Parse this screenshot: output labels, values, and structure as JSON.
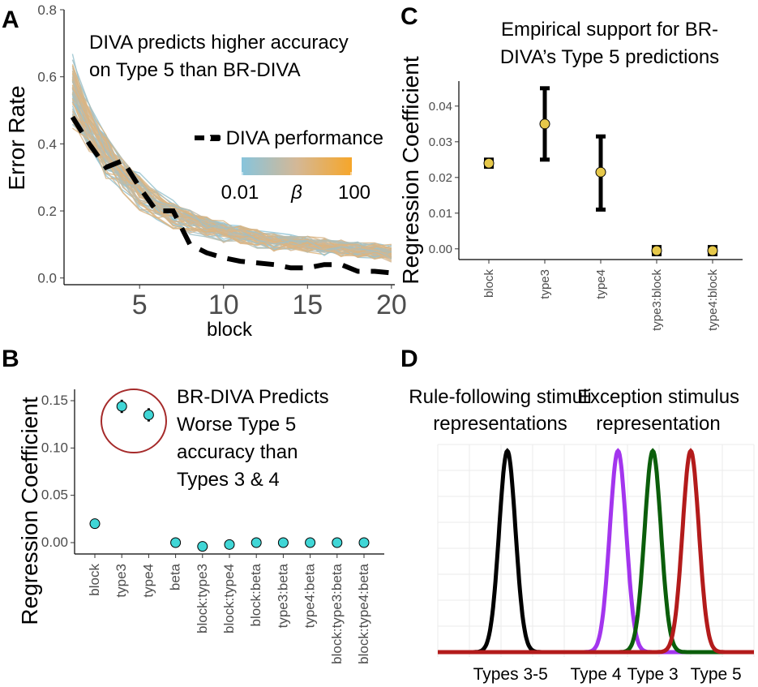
{
  "colors": {
    "low": "#87c4dc",
    "high": "#f6a62a",
    "tan": "#d4b896",
    "diva": "#000000",
    "pointB": "#40d6d6",
    "pointC": "#e6c84a",
    "ellipse": "#a52a2a",
    "type4": "#a335ee",
    "type3": "#0b5e0b",
    "type5": "#b31b1b",
    "types35": "#000000"
  },
  "panels": {
    "A": {
      "label": "A",
      "annotation_line1": "DIVA predicts higher accuracy",
      "annotation_line2": "on Type 5 than BR-DIVA",
      "legend_dash": "= DIVA performance",
      "legend_low": "0.01",
      "legend_beta": "β",
      "legend_high": "100"
    },
    "B": {
      "label": "B",
      "annotation_lines": [
        "BR-DIVA Predicts",
        "Worse Type 5",
        "accuracy than",
        "Types 3 & 4"
      ]
    },
    "C": {
      "label": "C",
      "title_line1": "Empirical support for BR-",
      "title_line2": "DIVA’s Type 5 predictions"
    },
    "D": {
      "label": "D",
      "left_title_line1": "Rule-following stimuli",
      "left_title_line2": "representations",
      "right_title_line1": "Exception stimulus",
      "right_title_line2": "representation"
    }
  },
  "chart_data": [
    {
      "id": "A",
      "type": "line",
      "title": "",
      "xlabel": "block",
      "ylabel": "Error Rate",
      "xlim": [
        0.5,
        20.2
      ],
      "ylim": [
        -0.02,
        0.8
      ],
      "xticks": [
        5,
        10,
        15,
        20
      ],
      "yticks": [
        0.0,
        0.2,
        0.4,
        0.6,
        0.8
      ],
      "ytick_labels": [
        "0.0",
        "0.2",
        "0.4",
        "0.6",
        "0.8"
      ],
      "x": [
        1,
        2,
        3,
        4,
        5,
        6,
        7,
        8,
        9,
        10,
        11,
        12,
        13,
        14,
        15,
        16,
        17,
        18,
        19,
        20
      ],
      "model_mean": [
        0.56,
        0.45,
        0.37,
        0.31,
        0.26,
        0.22,
        0.19,
        0.17,
        0.155,
        0.14,
        0.13,
        0.12,
        0.11,
        0.105,
        0.1,
        0.095,
        0.09,
        0.085,
        0.08,
        0.075
      ],
      "series": [
        {
          "name": "DIVA performance",
          "values": [
            0.48,
            0.4,
            0.33,
            0.35,
            0.27,
            0.2,
            0.2,
            0.1,
            0.075,
            0.06,
            0.05,
            0.045,
            0.04,
            0.03,
            0.03,
            0.04,
            0.04,
            0.02,
            0.02,
            0.015
          ]
        }
      ],
      "legend": {
        "title": "β",
        "range": [
          "0.01",
          "100"
        ]
      }
    },
    {
      "id": "B",
      "type": "scatter",
      "xlabel": "",
      "ylabel": "Regression Coefficient",
      "ylim": [
        -0.012,
        0.162
      ],
      "yticks": [
        0.0,
        0.05,
        0.1,
        0.15
      ],
      "ytick_labels": [
        "0.00",
        "0.05",
        "0.10",
        "0.15"
      ],
      "categories": [
        "block",
        "type3",
        "type4",
        "beta",
        "block:type3",
        "block:type4",
        "block:beta",
        "type3:beta",
        "type4:beta",
        "block:type3:beta",
        "block:type4:beta"
      ],
      "values": [
        0.02,
        0.144,
        0.135,
        0.0,
        -0.004,
        -0.002,
        0.0,
        0.0,
        0.0,
        0.0,
        0.0
      ],
      "error_low": [
        0.019,
        0.137,
        0.128,
        0.0,
        -0.005,
        -0.003,
        0.0,
        0.0,
        0.0,
        0.0,
        0.0
      ],
      "error_high": [
        0.021,
        0.151,
        0.142,
        0.0,
        -0.003,
        -0.001,
        0.0,
        0.0,
        0.0,
        0.0,
        0.0
      ]
    },
    {
      "id": "C",
      "type": "scatter",
      "xlabel": "",
      "ylabel": "Regression Coefficient",
      "ylim": [
        -0.003,
        0.047
      ],
      "yticks": [
        0.0,
        0.01,
        0.02,
        0.03,
        0.04
      ],
      "ytick_labels": [
        "0.00",
        "0.01",
        "0.02",
        "0.03",
        "0.04"
      ],
      "categories": [
        "block",
        "type3",
        "type4",
        "type3:block",
        "type4:block"
      ],
      "values": [
        0.024,
        0.035,
        0.0215,
        -0.0005,
        -0.0005
      ],
      "error_low": [
        0.023,
        0.025,
        0.011,
        -0.0015,
        -0.0015
      ],
      "error_high": [
        0.025,
        0.045,
        0.0315,
        0.0005,
        0.0005
      ]
    },
    {
      "id": "D",
      "type": "line",
      "xlabel": "",
      "ylabel": "",
      "xlim": [
        0,
        100
      ],
      "xticks": [
        23,
        50,
        68,
        88
      ],
      "xtick_labels": [
        "Types 3-5",
        "Type 4",
        "Type 3",
        "Type 5"
      ],
      "series": [
        {
          "name": "Types 3-5",
          "mean": 22,
          "sd": 2.6
        },
        {
          "name": "Type 4",
          "mean": 57,
          "sd": 2.6
        },
        {
          "name": "Type 3",
          "mean": 68,
          "sd": 2.6
        },
        {
          "name": "Type 5",
          "mean": 80,
          "sd": 2.6
        }
      ]
    }
  ]
}
